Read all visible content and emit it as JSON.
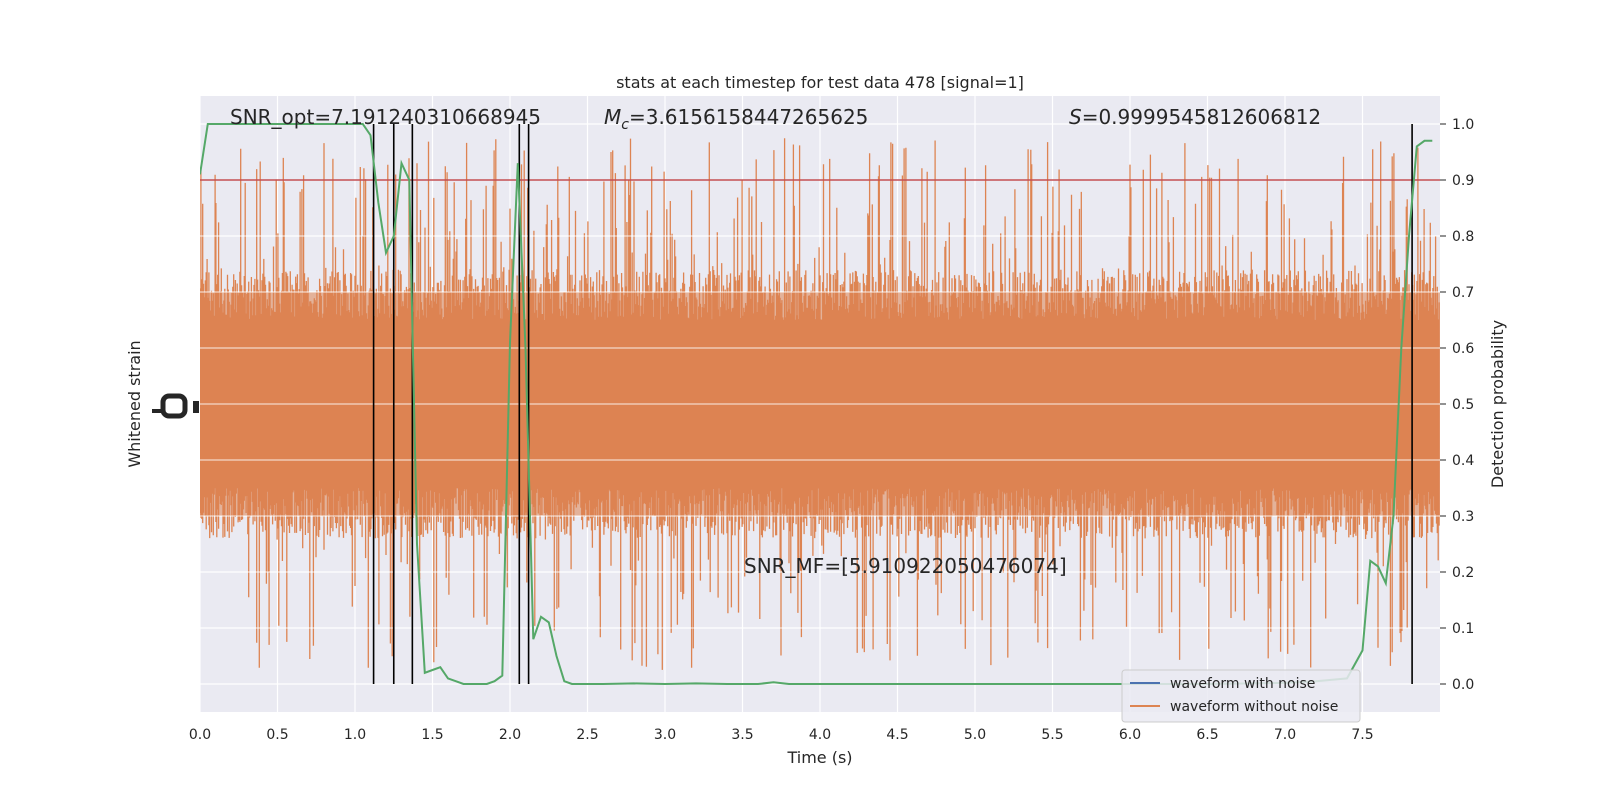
{
  "chart_data": {
    "type": "line",
    "title": "stats at each timestep for test data 478 [signal=1]",
    "xlabel": "Time (s)",
    "ylabel_left": "Whitened strain",
    "ylabel_right": "Detection probability",
    "xlim": [
      0.0,
      8.0
    ],
    "ylim_right": [
      -0.05,
      1.05
    ],
    "x_ticks": [
      0.0,
      0.5,
      1.0,
      1.5,
      2.0,
      2.5,
      3.0,
      3.5,
      4.0,
      4.5,
      5.0,
      5.5,
      6.0,
      6.5,
      7.0,
      7.5
    ],
    "x_tick_labels": [
      "0.0",
      "0.5",
      "1.0",
      "1.5",
      "2.0",
      "2.5",
      "3.0",
      "3.5",
      "4.0",
      "4.5",
      "5.0",
      "5.5",
      "6.0",
      "6.5",
      "7.0",
      "7.5"
    ],
    "y_right_ticks": [
      0.0,
      0.1,
      0.2,
      0.3,
      0.4,
      0.5,
      0.6,
      0.7,
      0.8,
      0.9,
      1.0
    ],
    "y_right_tick_labels": [
      "0.0",
      "0.1",
      "0.2",
      "0.3",
      "0.4",
      "0.5",
      "0.6",
      "0.7",
      "0.8",
      "0.9",
      "1.0"
    ],
    "grid": true,
    "legend_position": "lower-right",
    "legend": [
      {
        "label": "waveform with noise",
        "color": "#4c72b0"
      },
      {
        "label": "waveform without noise",
        "color": "#dd8452"
      }
    ],
    "annotations": {
      "snr_opt": "SNR_opt=7.191240310668945",
      "mc_symbol": "M",
      "mc_subscript": "c",
      "mc_value": "=3.6156158447265625",
      "s_symbol": "S",
      "s_value": "=0.9999545812606812",
      "snr_mf": "SNR_MF=[5.910922050476074]"
    },
    "threshold": {
      "value": 0.9,
      "color": "#c44e52"
    },
    "vertical_lines_x": [
      1.12,
      1.25,
      1.37,
      2.06,
      2.12,
      7.82
    ],
    "probability_series": {
      "color": "#55a868",
      "x": [
        0.0,
        0.05,
        0.1,
        0.2,
        0.3,
        0.4,
        0.5,
        0.6,
        0.7,
        0.8,
        0.9,
        1.0,
        1.05,
        1.1,
        1.15,
        1.2,
        1.25,
        1.3,
        1.35,
        1.4,
        1.45,
        1.5,
        1.55,
        1.6,
        1.65,
        1.7,
        1.75,
        1.8,
        1.85,
        1.9,
        1.95,
        2.0,
        2.05,
        2.1,
        2.15,
        2.2,
        2.25,
        2.3,
        2.35,
        2.4,
        2.45,
        2.5,
        2.6,
        2.8,
        3.0,
        3.2,
        3.4,
        3.6,
        3.7,
        3.8,
        3.9,
        4.0,
        4.5,
        5.0,
        5.5,
        6.0,
        6.5,
        7.0,
        7.2,
        7.4,
        7.5,
        7.55,
        7.6,
        7.65,
        7.7,
        7.75,
        7.8,
        7.85,
        7.9,
        7.95
      ],
      "y": [
        0.91,
        1.0,
        1.0,
        1.0,
        1.0,
        1.0,
        1.0,
        1.0,
        1.0,
        1.0,
        1.0,
        1.0,
        1.0,
        0.98,
        0.86,
        0.77,
        0.8,
        0.93,
        0.9,
        0.25,
        0.02,
        0.025,
        0.03,
        0.01,
        0.005,
        0.0,
        0.0,
        0.0,
        0.0,
        0.005,
        0.015,
        0.61,
        0.93,
        0.6,
        0.08,
        0.12,
        0.11,
        0.05,
        0.005,
        0.0,
        0.0,
        0.0,
        0.0,
        0.001,
        0.0,
        0.001,
        0.0,
        0.0,
        0.003,
        0.0,
        0.0,
        0.0,
        0.0,
        0.0,
        0.0,
        0.0,
        0.0,
        0.002,
        0.005,
        0.01,
        0.06,
        0.22,
        0.21,
        0.18,
        0.3,
        0.6,
        0.8,
        0.96,
        0.97,
        0.97
      ]
    },
    "strain_band": {
      "color": "#dd8452",
      "dense_low": 0.3,
      "dense_high": 0.7,
      "spike_max": 1.0,
      "spike_min": 0.0
    }
  }
}
